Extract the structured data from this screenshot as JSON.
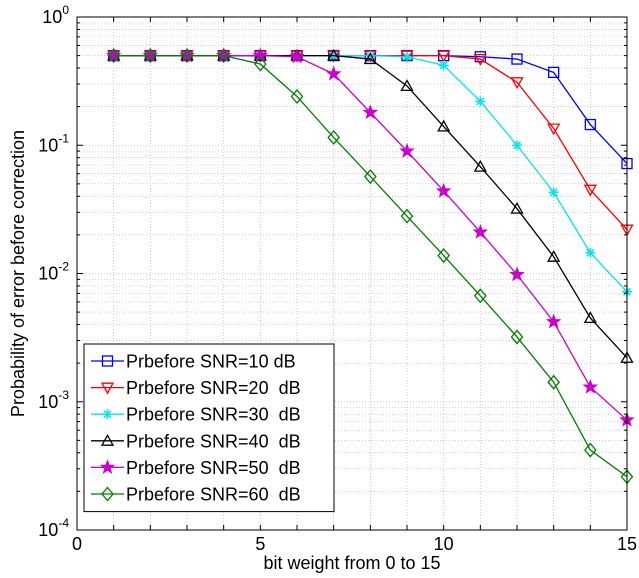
{
  "chart_data": {
    "type": "line",
    "xlabel": "bit weight from 0 to 15",
    "ylabel": "Probability of error before correction",
    "xlim": [
      0,
      15
    ],
    "ylim": [
      0.0001,
      1
    ],
    "yscale": "log",
    "grid": true,
    "legend_position": "bottom-left",
    "x_ticks": [
      "0",
      "5",
      "10",
      "15"
    ],
    "y_ticks": [
      {
        "base": "10",
        "exp": "-4"
      },
      {
        "base": "10",
        "exp": "-3"
      },
      {
        "base": "10",
        "exp": "-2"
      },
      {
        "base": "10",
        "exp": "-1"
      },
      {
        "base": "10",
        "exp": "0"
      }
    ],
    "x": [
      1,
      2,
      3,
      4,
      5,
      6,
      7,
      8,
      9,
      10,
      11,
      12,
      13,
      14,
      15
    ],
    "series": [
      {
        "name": "Prbefore SNR=10 dB",
        "color": "#0000ff",
        "marker": "square",
        "values": [
          0.5,
          0.5,
          0.5,
          0.5,
          0.5,
          0.5,
          0.5,
          0.5,
          0.5,
          0.5,
          0.49,
          0.47,
          0.37,
          0.145,
          0.072
        ]
      },
      {
        "name": "Prbefore SNR=20  dB",
        "color": "#ff0000",
        "marker": "triangle-down",
        "values": [
          0.5,
          0.5,
          0.5,
          0.5,
          0.5,
          0.5,
          0.5,
          0.5,
          0.5,
          0.5,
          0.47,
          0.31,
          0.135,
          0.045,
          0.022
        ]
      },
      {
        "name": "Prbefore SNR=30  dB",
        "color": "#00e5ee",
        "marker": "asterisk",
        "values": [
          0.5,
          0.5,
          0.5,
          0.5,
          0.5,
          0.5,
          0.5,
          0.5,
          0.49,
          0.42,
          0.22,
          0.1,
          0.043,
          0.0145,
          0.0072
        ]
      },
      {
        "name": "Prbefore SNR=40  dB",
        "color": "#000000",
        "marker": "triangle-up",
        "values": [
          0.5,
          0.5,
          0.5,
          0.5,
          0.5,
          0.5,
          0.5,
          0.47,
          0.29,
          0.14,
          0.068,
          0.032,
          0.0135,
          0.0045,
          0.0022
        ]
      },
      {
        "name": "Prbefore SNR=50  dB",
        "color": "#cc00cc",
        "marker": "star",
        "values": [
          0.5,
          0.5,
          0.5,
          0.5,
          0.5,
          0.49,
          0.36,
          0.18,
          0.09,
          0.044,
          0.021,
          0.0098,
          0.0042,
          0.0013,
          0.00072
        ]
      },
      {
        "name": "Prbefore SNR=60  dB",
        "color": "#007f00",
        "marker": "diamond",
        "values": [
          0.5,
          0.5,
          0.5,
          0.5,
          0.43,
          0.24,
          0.115,
          0.057,
          0.028,
          0.0138,
          0.0067,
          0.0032,
          0.00142,
          0.00042,
          0.00026
        ]
      }
    ]
  }
}
